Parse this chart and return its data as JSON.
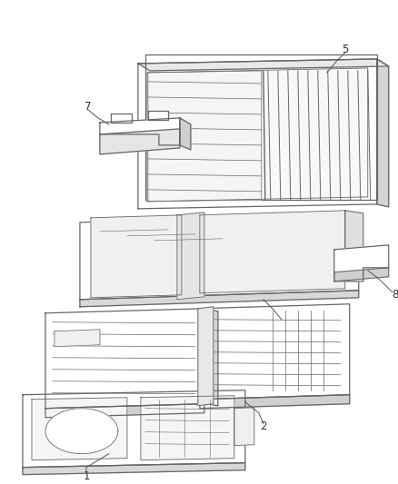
{
  "background_color": "#ffffff",
  "line_color": "#666666",
  "figsize": [
    4.38,
    5.33
  ],
  "dpi": 100,
  "label_color": "#333333",
  "label_fontsize": 8.5
}
